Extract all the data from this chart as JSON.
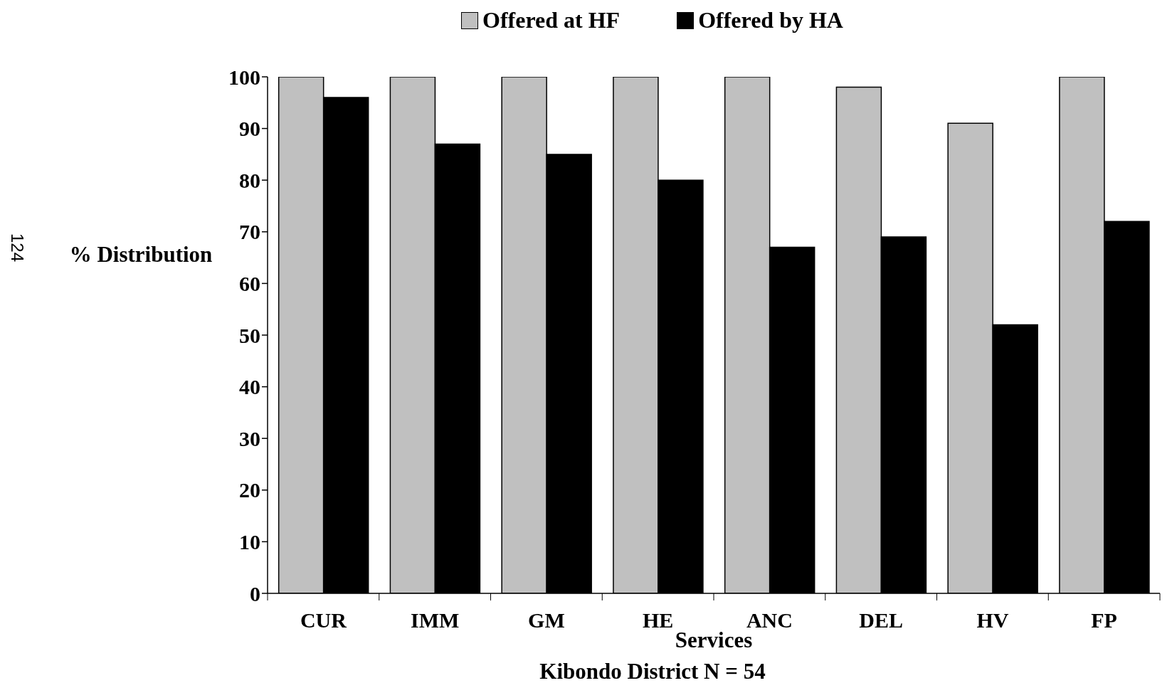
{
  "chart_data": {
    "type": "bar",
    "xlabel": "Services",
    "ylabel": "% Distribution",
    "categories": [
      "CUR",
      "IMM",
      "GM",
      "HE",
      "ANC",
      "DEL",
      "HV",
      "FP"
    ],
    "series": [
      {
        "name": "Offered at HF",
        "color": "#c0c0c0",
        "values": [
          100,
          100,
          100,
          100,
          100,
          98,
          91,
          100
        ]
      },
      {
        "name": "Offered by HA",
        "color": "#000000",
        "values": [
          96,
          87,
          85,
          80,
          67,
          69,
          52,
          72
        ]
      }
    ],
    "ylim": [
      0,
      100
    ],
    "yticks": [
      0,
      10,
      20,
      30,
      40,
      50,
      60,
      70,
      80,
      90,
      100
    ],
    "grid": false,
    "legend": "top",
    "annotations": [
      "Kibondo District N = 54",
      "124"
    ]
  }
}
